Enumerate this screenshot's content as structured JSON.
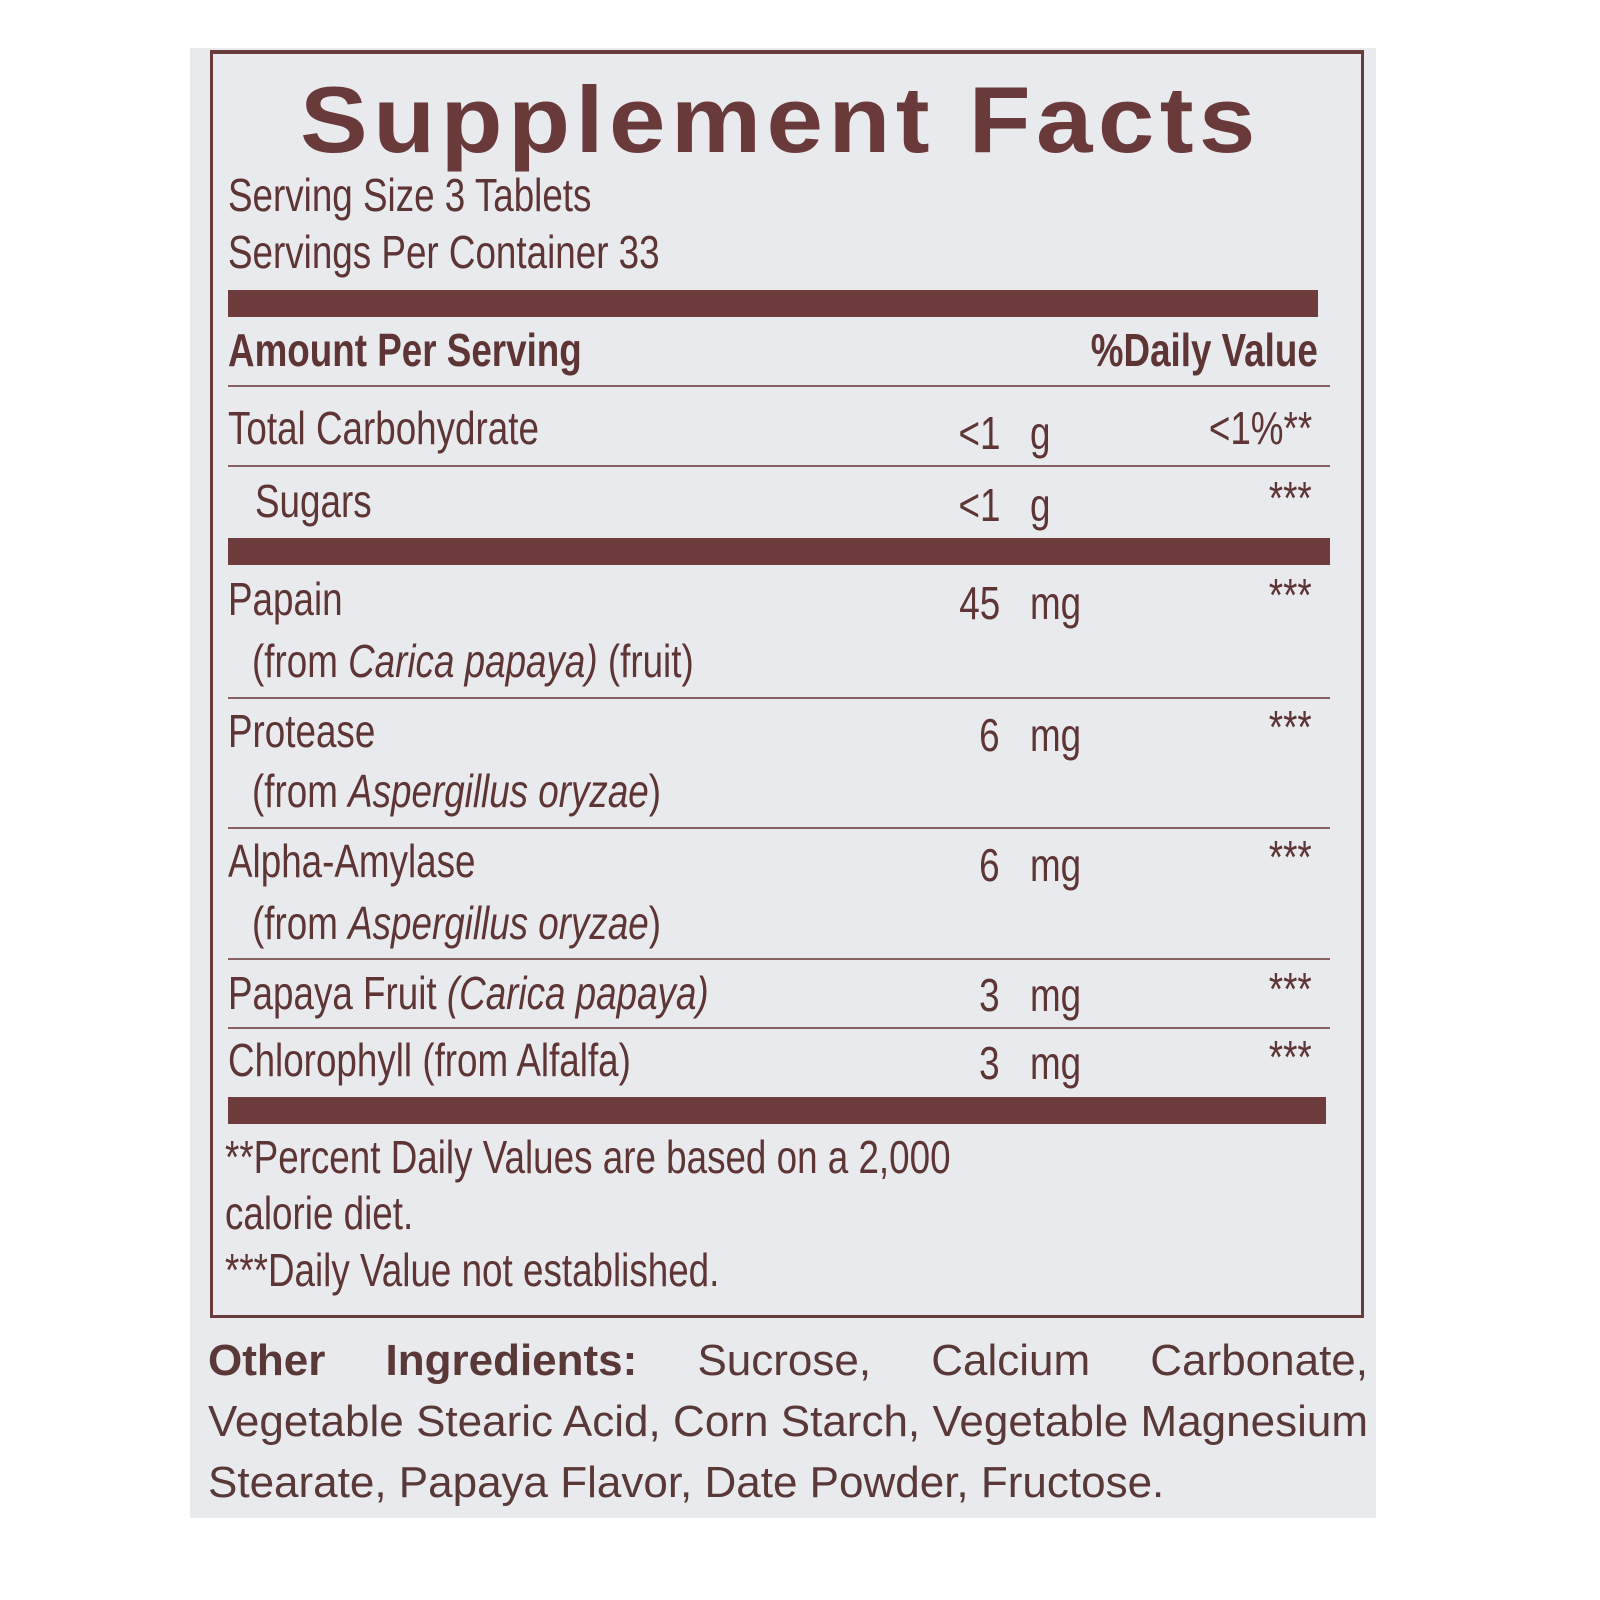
{
  "title": "Supplement Facts",
  "serving_size": "Serving Size 3 Tablets",
  "servings_per_container": "Servings Per Container 33",
  "header": {
    "amount_label": "Amount Per Serving",
    "dv_label": "%Daily Value"
  },
  "rows": [
    {
      "name": "Total  Carbohydrate",
      "value": "<1",
      "unit": "g",
      "dv": "<1%**"
    },
    {
      "name": "Sugars",
      "value": "<1",
      "unit": "g",
      "dv": "***"
    },
    {
      "name": "Papain",
      "value": "45",
      "unit": "mg",
      "dv": "***",
      "source_prefix": "(from ",
      "source_italic": "Carica papaya)",
      "source_suffix": " (fruit)"
    },
    {
      "name": "Protease",
      "value": "6",
      "unit": "mg",
      "dv": "***",
      "source_prefix": "(from ",
      "source_italic": "Aspergillus oryzae",
      "source_suffix": ")"
    },
    {
      "name": "Alpha-Amylase",
      "value": "6",
      "unit": "mg",
      "dv": "***",
      "source_prefix": "(from ",
      "source_italic": "Aspergillus oryzae",
      "source_suffix": ")"
    },
    {
      "name": "Papaya Fruit ",
      "name_italic": "(Carica papaya)",
      "value": "3",
      "unit": "mg",
      "dv": "***"
    },
    {
      "name": "Chlorophyll (from Alfalfa)",
      "value": "3",
      "unit": "mg",
      "dv": "***"
    }
  ],
  "footnotes": {
    "line1": "**Percent Daily Values are based on a 2,000",
    "line2": "calorie diet.",
    "line3": "***Daily Value not established."
  },
  "other_ingredients": {
    "label": "Other  Ingredients:",
    "line1": "Sucrose, Calcium Carbonate,",
    "line2": "Vegetable Stearic Acid, Corn Starch, Vegetable Magnesium",
    "line3": "Stearate, Papaya Flavor, Date Powder, Fructose."
  },
  "colors": {
    "ink": "#6a3a3a",
    "panel": "#e8eaee"
  }
}
